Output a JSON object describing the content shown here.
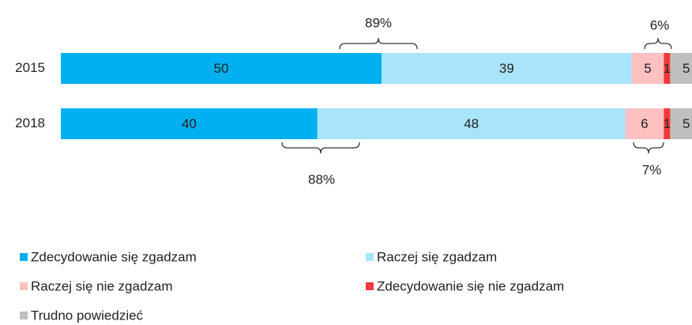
{
  "chart_data": {
    "type": "stacked-bar",
    "orientation": "horizontal",
    "categories": [
      "2015",
      "2018"
    ],
    "series": [
      {
        "name": "Zdecydowanie się zgadzam",
        "color": "#00b0f0",
        "values": [
          50,
          40
        ]
      },
      {
        "name": "Raczej się zgadzam",
        "color": "#a9e4fb",
        "values": [
          39,
          48
        ]
      },
      {
        "name": "Raczej się nie zgadzam",
        "color": "#ffc0c0",
        "values": [
          5,
          6
        ]
      },
      {
        "name": "Zdecydowanie się nie zgadzam",
        "color": "#f0393c",
        "values": [
          1,
          1
        ]
      },
      {
        "name": "Trudno powiedzieć",
        "color": "#bfbfbf",
        "values": [
          5,
          5
        ]
      }
    ],
    "annotations": [
      "89%",
      "6%",
      "88%",
      "7%"
    ]
  }
}
